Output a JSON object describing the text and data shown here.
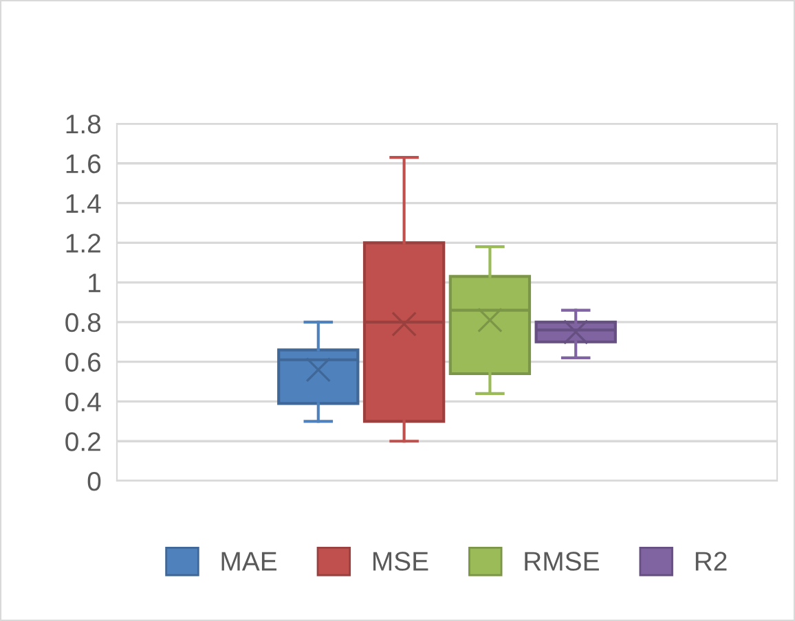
{
  "chart_data": {
    "type": "box",
    "categories": [
      null
    ],
    "series": [
      {
        "name": "MAE",
        "color": "#4f81bd",
        "boxes": [
          {
            "low": 0.3,
            "q1": 0.39,
            "median": 0.61,
            "q3": 0.66,
            "high": 0.8,
            "mean": 0.56
          }
        ]
      },
      {
        "name": "MSE",
        "color": "#c0504d",
        "boxes": [
          {
            "low": 0.2,
            "q1": 0.3,
            "median": 0.8,
            "q3": 1.2,
            "high": 1.63,
            "mean": 0.79
          }
        ]
      },
      {
        "name": "RMSE",
        "color": "#9bbb59",
        "boxes": [
          {
            "low": 0.44,
            "q1": 0.54,
            "median": 0.86,
            "q3": 1.03,
            "high": 1.18,
            "mean": 0.81
          }
        ]
      },
      {
        "name": "R2",
        "color": "#8064a2",
        "boxes": [
          {
            "low": 0.62,
            "q1": 0.7,
            "median": 0.76,
            "q3": 0.8,
            "high": 0.86,
            "mean": 0.75
          }
        ]
      }
    ],
    "ylim": [
      0,
      1.8
    ],
    "yticks": [
      0,
      0.2,
      0.4,
      0.6,
      0.8,
      1,
      1.2,
      1.4,
      1.6,
      1.8
    ],
    "grid": "y",
    "legend": "bottom",
    "tick_labels": "y",
    "marker": "cross"
  }
}
